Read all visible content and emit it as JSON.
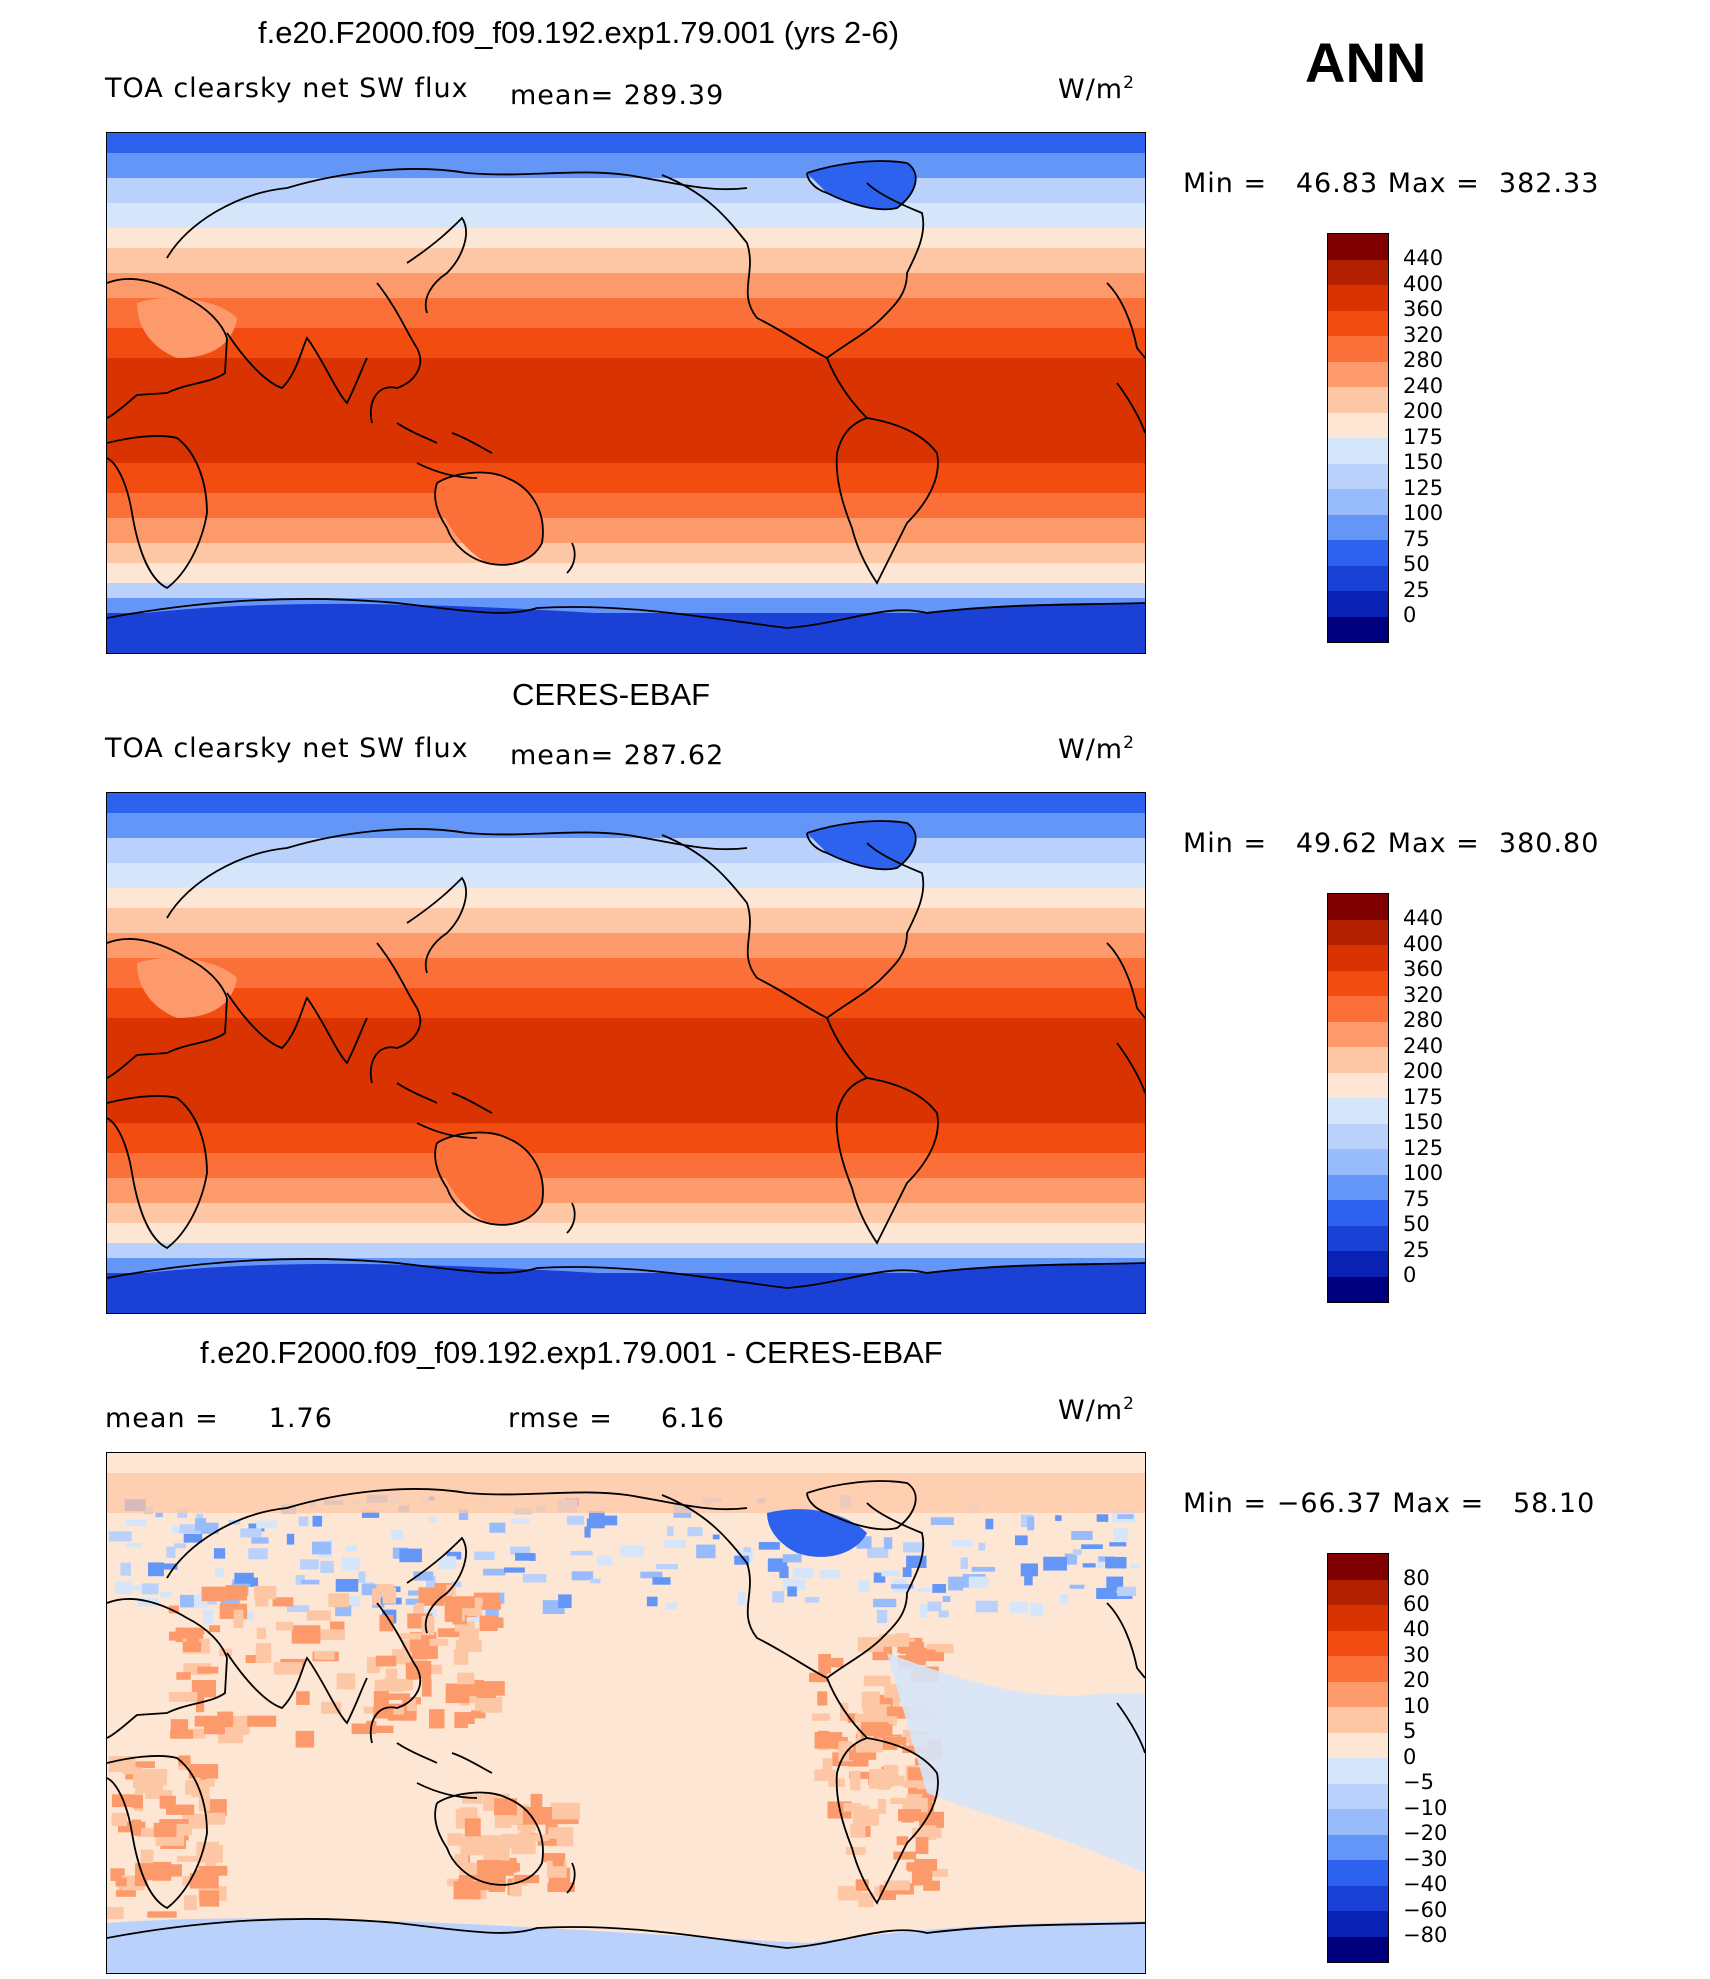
{
  "panels": [
    {
      "title": "f.e20.F2000.f09_f09.192.exp1.79.001 (yrs 2-6)",
      "var_label": "TOA clearsky net SW flux",
      "mean_label": "mean=",
      "mean_value": "289.39",
      "unit": "W/m",
      "unit_sup": "2",
      "minmax": "Min =   46.83 Max =  382.33",
      "levels": [
        "440",
        "400",
        "360",
        "320",
        "280",
        "240",
        "200",
        "175",
        "150",
        "125",
        "100",
        "75",
        "50",
        "25",
        "0"
      ],
      "colors": [
        "#7f0000",
        "#b22000",
        "#d83300",
        "#f24c11",
        "#fb7038",
        "#fd9a6b",
        "#fdc7a5",
        "#fde6d4",
        "#d6e6fa",
        "#bad2fb",
        "#98bcfb",
        "#6496f7",
        "#2c62ed",
        "#1a40d6",
        "#0a22b4",
        "#00007f"
      ]
    },
    {
      "title": "CERES-EBAF",
      "var_label": "TOA clearsky net SW flux",
      "mean_label": "mean=",
      "mean_value": "287.62",
      "unit": "W/m",
      "unit_sup": "2",
      "minmax": "Min =   49.62 Max =  380.80",
      "levels": [
        "440",
        "400",
        "360",
        "320",
        "280",
        "240",
        "200",
        "175",
        "150",
        "125",
        "100",
        "75",
        "50",
        "25",
        "0"
      ],
      "colors": [
        "#7f0000",
        "#b22000",
        "#d83300",
        "#f24c11",
        "#fb7038",
        "#fd9a6b",
        "#fdc7a5",
        "#fde6d4",
        "#d6e6fa",
        "#bad2fb",
        "#98bcfb",
        "#6496f7",
        "#2c62ed",
        "#1a40d6",
        "#0a22b4",
        "#00007f"
      ]
    },
    {
      "title": "f.e20.F2000.f09_f09.192.exp1.79.001 - CERES-EBAF",
      "mean_label": "mean =",
      "mean_value": "1.76",
      "rmse_label": "rmse =",
      "rmse_value": "6.16",
      "unit": "W/m",
      "unit_sup": "2",
      "minmax": "Min = −66.37 Max =   58.10",
      "levels": [
        "80",
        "60",
        "40",
        "30",
        "20",
        "10",
        "5",
        "0",
        "−5",
        "−10",
        "−20",
        "−30",
        "−40",
        "−60",
        "−80"
      ],
      "colors": [
        "#7f0000",
        "#b22000",
        "#d83300",
        "#f24c11",
        "#fb7038",
        "#fd9a6b",
        "#fdc7a5",
        "#fde6d4",
        "#d6e6fa",
        "#bad2fb",
        "#98bcfb",
        "#6496f7",
        "#2c62ed",
        "#1a40d6",
        "#0a22b4",
        "#00007f"
      ]
    }
  ],
  "season": "ANN"
}
